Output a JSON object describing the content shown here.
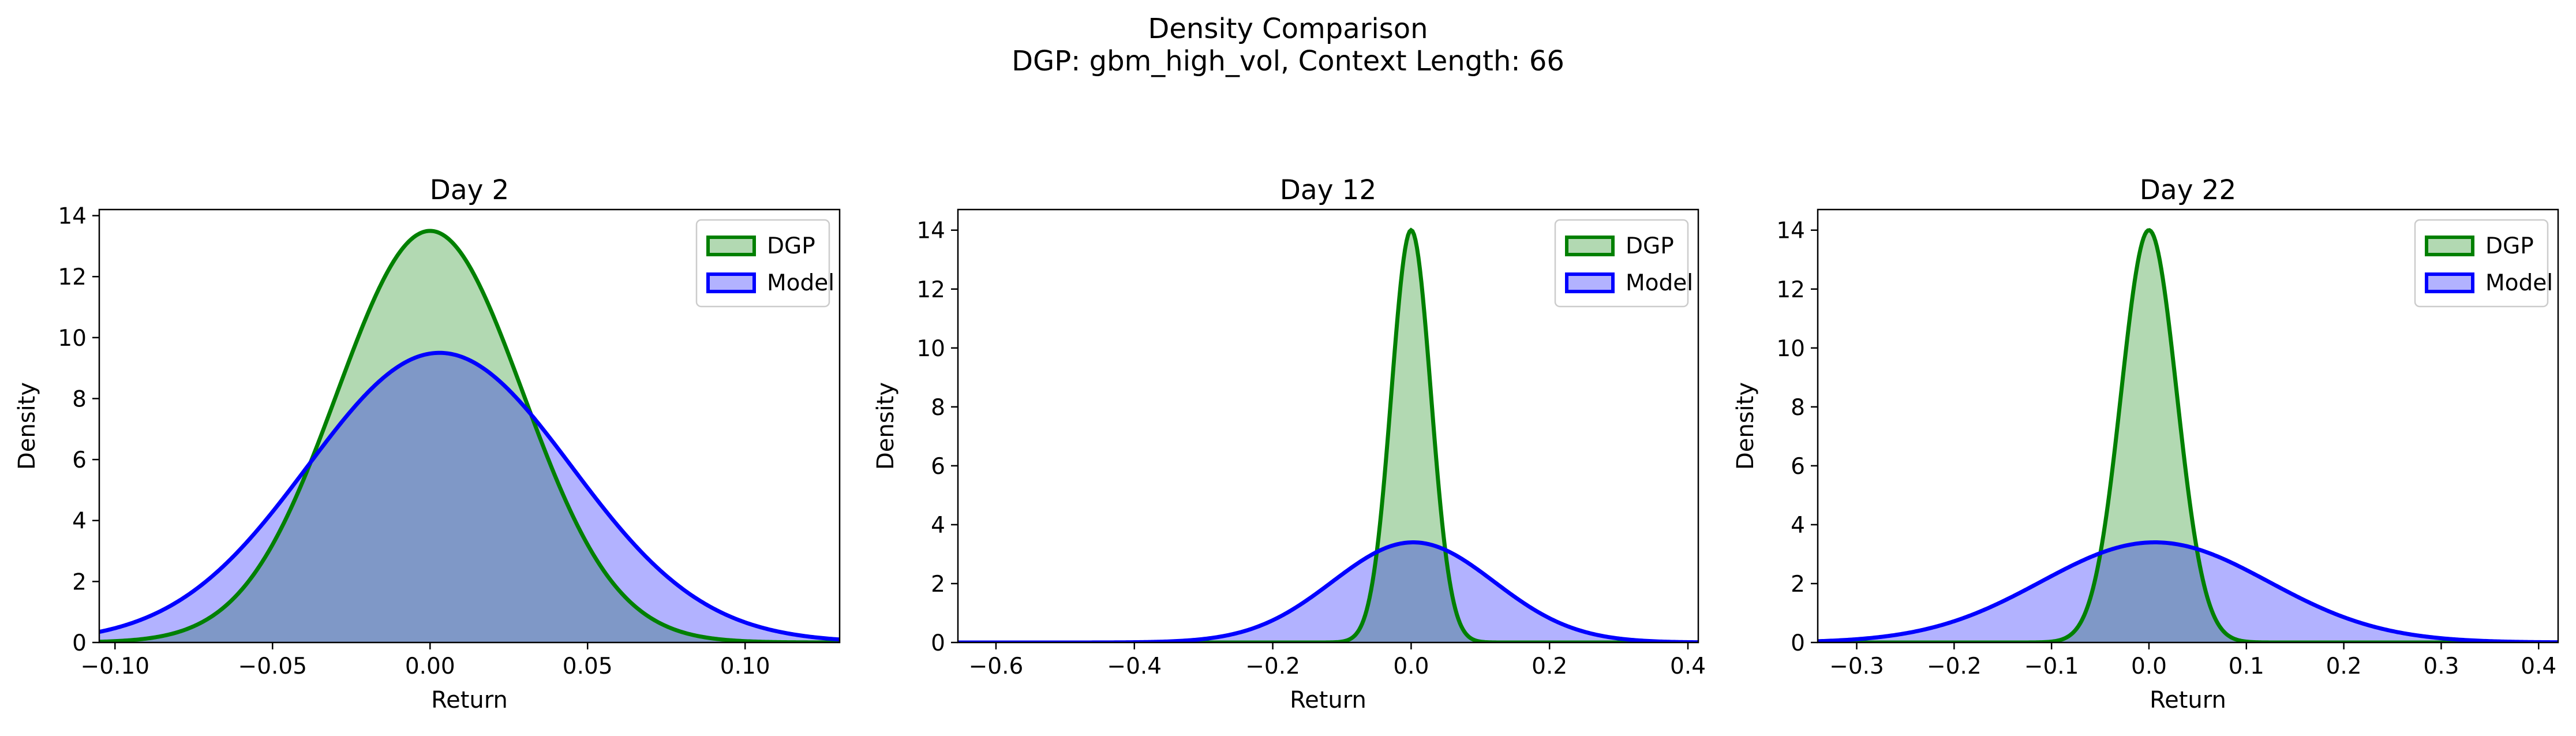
{
  "figure": {
    "title": "Density Comparison",
    "subtitle": "DGP: gbm_high_vol, Context Length: 66"
  },
  "colors": {
    "dgp_line": "#008000",
    "dgp_fill": "#b2d9b2",
    "model_line": "#0000ff",
    "model_fill": "#b2b2ff",
    "overlap_fill": "#7f98c7"
  },
  "chart_data": [
    {
      "type": "area",
      "title": "Day 2",
      "xlabel": "Return",
      "ylabel": "Density",
      "xlim": [
        -0.105,
        0.13
      ],
      "ylim": [
        0,
        14.2
      ],
      "xticks": [
        -0.1,
        -0.05,
        0.0,
        0.05,
        0.1
      ],
      "xtick_labels": [
        "−0.10",
        "−0.05",
        "0.00",
        "0.05",
        "0.10"
      ],
      "yticks": [
        0,
        2,
        4,
        6,
        8,
        10,
        12,
        14
      ],
      "ytick_labels": [
        "0",
        "2",
        "4",
        "6",
        "8",
        "10",
        "12",
        "14"
      ],
      "grid": false,
      "legend": "top-right",
      "series": [
        {
          "name": "DGP",
          "mean": 0.0,
          "std": 0.0295,
          "peak": 13.5
        },
        {
          "name": "Model",
          "mean": 0.003,
          "std": 0.042,
          "peak": 9.5
        }
      ]
    },
    {
      "type": "area",
      "title": "Day 12",
      "xlabel": "Return",
      "ylabel": "Density",
      "xlim": [
        -0.655,
        0.415
      ],
      "ylim": [
        0,
        14.7
      ],
      "xticks": [
        -0.6,
        -0.4,
        -0.2,
        0.0,
        0.2,
        0.4
      ],
      "xtick_labels": [
        "−0.6",
        "−0.4",
        "−0.2",
        "0.0",
        "0.2",
        "0.4"
      ],
      "yticks": [
        0,
        2,
        4,
        6,
        8,
        10,
        12,
        14
      ],
      "ytick_labels": [
        "0",
        "2",
        "4",
        "6",
        "8",
        "10",
        "12",
        "14"
      ],
      "grid": false,
      "legend": "top-right",
      "series": [
        {
          "name": "DGP",
          "mean": 0.0,
          "std": 0.0285,
          "peak": 14.0
        },
        {
          "name": "Model",
          "mean": 0.003,
          "std": 0.117,
          "peak": 3.4
        }
      ]
    },
    {
      "type": "area",
      "title": "Day 22",
      "xlabel": "Return",
      "ylabel": "Density",
      "xlim": [
        -0.34,
        0.42
      ],
      "ylim": [
        0,
        14.7
      ],
      "xticks": [
        -0.3,
        -0.2,
        -0.1,
        0.0,
        0.1,
        0.2,
        0.3,
        0.4
      ],
      "xtick_labels": [
        "−0.3",
        "−0.2",
        "−0.1",
        "0.0",
        "0.1",
        "0.2",
        "0.3",
        "0.4"
      ],
      "yticks": [
        0,
        2,
        4,
        6,
        8,
        10,
        12,
        14
      ],
      "ytick_labels": [
        "0",
        "2",
        "4",
        "6",
        "8",
        "10",
        "12",
        "14"
      ],
      "grid": false,
      "legend": "top-right",
      "series": [
        {
          "name": "DGP",
          "mean": 0.0,
          "std": 0.0285,
          "peak": 14.0
        },
        {
          "name": "Model",
          "mean": 0.006,
          "std": 0.117,
          "peak": 3.4
        }
      ]
    }
  ]
}
